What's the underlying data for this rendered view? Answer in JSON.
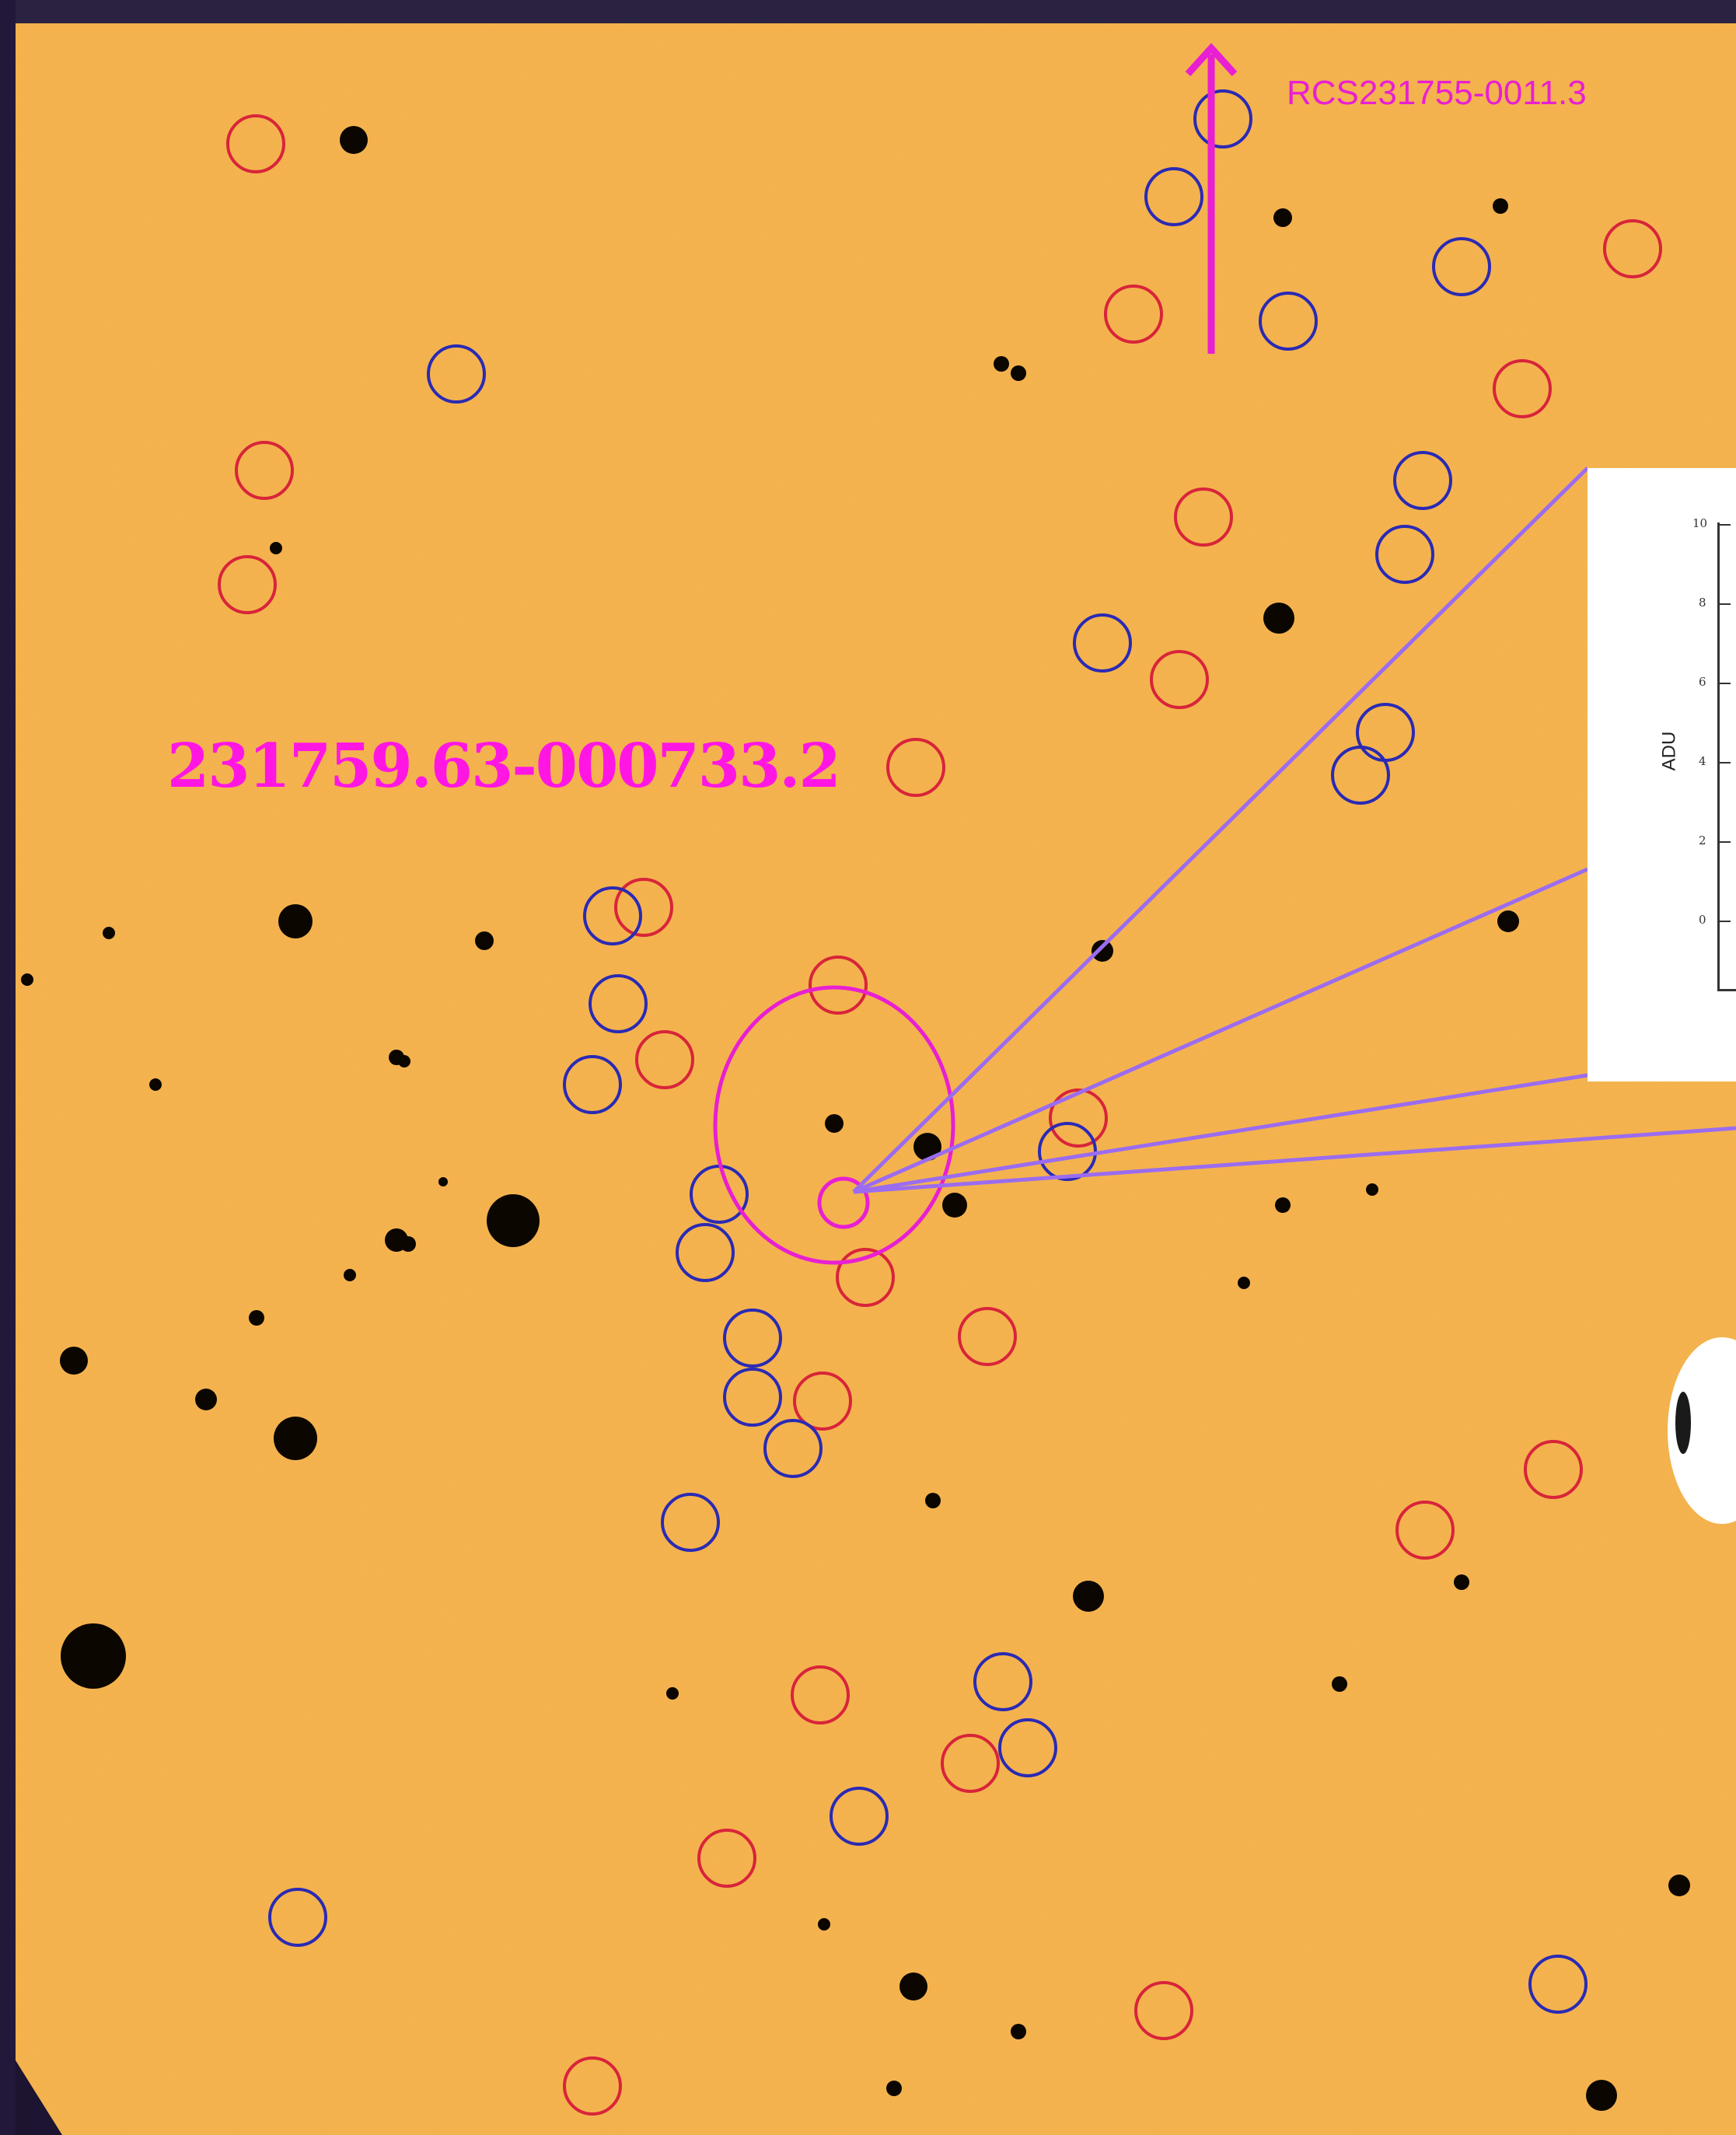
{
  "labels": {
    "cluster_name": "RCS231755-0011.3",
    "object_name": "231759.63-000733.2"
  },
  "inset_plot": {
    "ylabel": "ADU",
    "yticks": [
      "10",
      "8",
      "6",
      "4",
      "2",
      "0"
    ]
  },
  "colors": {
    "background_field": "#f4b04a",
    "red_circle": "#d8243a",
    "blue_circle": "#2a2ab4",
    "magenta": "#e81fd2",
    "callout_line": "#9b6cf0"
  }
}
